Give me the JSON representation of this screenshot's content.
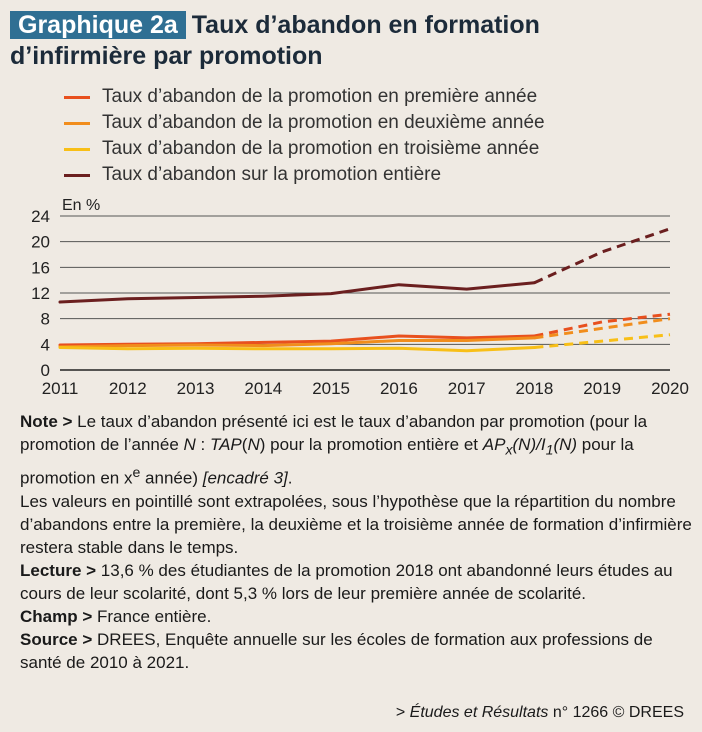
{
  "title": {
    "badge": "Graphique 2a",
    "line1": "Taux d’abandon en formation",
    "line2": "d’infirmière par promotion"
  },
  "chart_data": {
    "type": "line",
    "unit_label": "En %",
    "x": [
      2011,
      2012,
      2013,
      2014,
      2015,
      2016,
      2017,
      2018,
      2019,
      2020
    ],
    "ylim": [
      0,
      24
    ],
    "yticks": [
      0,
      4,
      8,
      12,
      16,
      20,
      24
    ],
    "grid": true,
    "legend_position": "top",
    "series": [
      {
        "name": "Taux d’abandon de la promotion en première année",
        "color": "#e8501e",
        "observed": [
          [
            2011,
            3.9
          ],
          [
            2012,
            4.0
          ],
          [
            2013,
            4.1
          ],
          [
            2014,
            4.3
          ],
          [
            2015,
            4.5
          ],
          [
            2016,
            5.3
          ],
          [
            2017,
            5.0
          ],
          [
            2018,
            5.3
          ]
        ],
        "extrapolated": [
          [
            2018,
            5.3
          ],
          [
            2019,
            7.5
          ],
          [
            2020,
            8.7
          ]
        ]
      },
      {
        "name": "Taux d’abandon de la promotion en deuxième année",
        "color": "#f18d1c",
        "observed": [
          [
            2011,
            3.6
          ],
          [
            2012,
            3.8
          ],
          [
            2013,
            3.9
          ],
          [
            2014,
            3.8
          ],
          [
            2015,
            4.1
          ],
          [
            2016,
            4.6
          ],
          [
            2017,
            4.6
          ],
          [
            2018,
            5.0
          ]
        ],
        "extrapolated": [
          [
            2018,
            5.0
          ],
          [
            2019,
            6.5
          ],
          [
            2020,
            8.0
          ]
        ]
      },
      {
        "name": "Taux d’abandon de la promotion en troisième année",
        "color": "#f8bf17",
        "observed": [
          [
            2011,
            3.5
          ],
          [
            2012,
            3.3
          ],
          [
            2013,
            3.4
          ],
          [
            2014,
            3.3
          ],
          [
            2015,
            3.3
          ],
          [
            2016,
            3.4
          ],
          [
            2017,
            3.0
          ],
          [
            2018,
            3.5
          ]
        ],
        "extrapolated": [
          [
            2018,
            3.5
          ],
          [
            2019,
            4.5
          ],
          [
            2020,
            5.5
          ]
        ]
      },
      {
        "name": "Taux d’abandon sur la promotion entière",
        "color": "#6b1f1f",
        "observed": [
          [
            2011,
            10.6
          ],
          [
            2012,
            11.1
          ],
          [
            2013,
            11.3
          ],
          [
            2014,
            11.5
          ],
          [
            2015,
            11.9
          ],
          [
            2016,
            13.3
          ],
          [
            2017,
            12.6
          ],
          [
            2018,
            13.6
          ]
        ],
        "extrapolated": [
          [
            2018,
            13.6
          ],
          [
            2019,
            18.4
          ],
          [
            2020,
            22.0
          ]
        ]
      }
    ]
  },
  "notes": {
    "note_label": "Note >",
    "note_p1": " Le taux d’abandon présenté ici est le taux d’abandon par promotion (pour la promotion de l’année ",
    "note_N1": "N",
    "note_p2": " : ",
    "note_tap": "TAP",
    "note_p3": "(",
    "note_N2": "N",
    "note_p4": ") pour la promotion entière et ",
    "note_ap": "AP",
    "note_x": "x",
    "note_p5": "(N)/I",
    "note_1": "1",
    "note_p6": "(N)",
    "note_p7": " pour la promotion en x",
    "note_e": "e",
    "note_p8": " année) ",
    "note_ref": "[encadré 3]",
    "note_p9": ".",
    "note_extra": "Les valeurs en pointillé sont extrapolées, sous l’hypothèse que la répartition du nombre d’abandons entre la première, la deuxième et la troisième année de formation d’infirmière restera stable dans le temps.",
    "lecture_label": "Lecture >",
    "lecture_text": " 13,6 % des étudiantes de la promotion 2018 ont abandonné leurs études au cours de leur scolarité, dont 5,3 % lors de leur première année de scolarité.",
    "champ_label": "Champ >",
    "champ_text": " France entière.",
    "source_label": "Source >",
    "source_text": " DREES, Enquête annuelle sur les écoles de formation aux professions de santé de 2010 à 2021."
  },
  "footer": {
    "prefix": "> ",
    "publication": "Études et Résultats",
    "suffix": " n° 1266 © DREES"
  }
}
